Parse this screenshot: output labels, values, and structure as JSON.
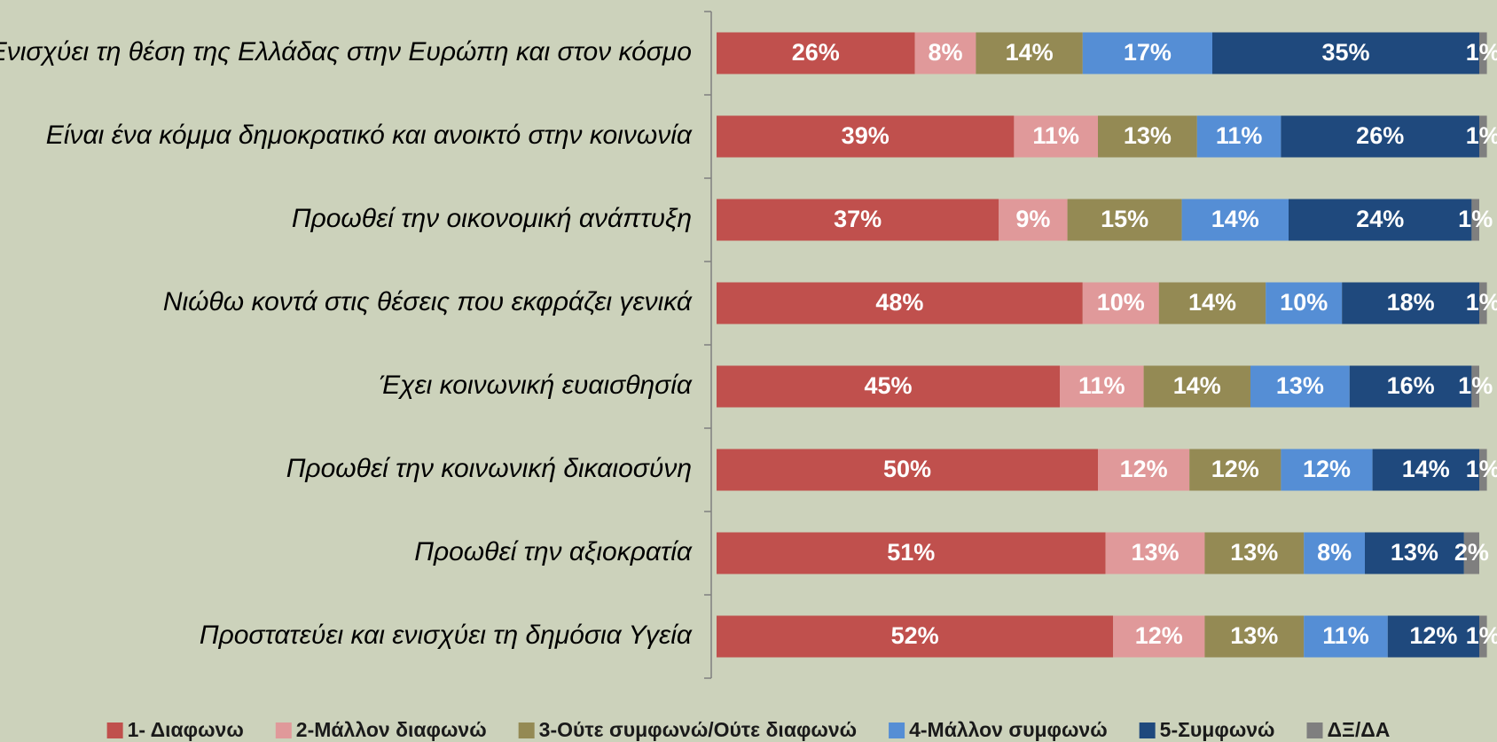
{
  "chart_data": {
    "type": "bar",
    "orientation": "horizontal",
    "stacked": true,
    "xlim": [
      0,
      100
    ],
    "categories": [
      "Ενισχύει τη θέση της Ελλάδας στην Ευρώπη και στον κόσμο",
      "Είναι ένα κόμμα δημοκρατικό και ανοικτό στην κοινωνία",
      "Προωθεί την οικονομική ανάπτυξη",
      "Νιώθω κοντά στις θέσεις που εκφράζει γενικά",
      "Έχει κοινωνική ευαισθησία",
      "Προωθεί την κοινωνική δικαιοσύνη",
      "Προωθεί την αξιοκρατία",
      "Προστατεύει και ενισχύει τη δημόσια Υγεία"
    ],
    "series": [
      {
        "name": "1- Διαφωνω",
        "color": "#c0504d",
        "values": [
          26,
          39,
          37,
          48,
          45,
          50,
          51,
          52
        ],
        "value_labels": [
          "26%",
          "39%",
          "37%",
          "48%",
          "45%",
          "50%",
          "51%",
          "52%"
        ]
      },
      {
        "name": "2-Μάλλον διαφωνώ",
        "color": "#e0999a",
        "values": [
          8,
          11,
          9,
          10,
          11,
          12,
          13,
          12
        ],
        "value_labels": [
          "8%",
          "11%",
          "9%",
          "10%",
          "11%",
          "12%",
          "13%",
          "12%"
        ]
      },
      {
        "name": "3-Ούτε συμφωνώ/Ούτε διαφωνώ",
        "color": "#948a54",
        "values": [
          14,
          13,
          15,
          14,
          14,
          12,
          13,
          13
        ],
        "value_labels": [
          "14%",
          "13%",
          "15%",
          "14%",
          "14%",
          "12%",
          "13%",
          "13%"
        ]
      },
      {
        "name": "4-Μάλλον συμφωνώ",
        "color": "#558ed5",
        "values": [
          17,
          11,
          14,
          10,
          13,
          12,
          8,
          11
        ],
        "value_labels": [
          "17%",
          "11%",
          "14%",
          "10%",
          "13%",
          "12%",
          "8%",
          "11%"
        ]
      },
      {
        "name": "5-Συμφωνώ",
        "color": "#1f497d",
        "values": [
          35,
          26,
          24,
          18,
          16,
          14,
          13,
          12
        ],
        "value_labels": [
          "35%",
          "26%",
          "24%",
          "18%",
          "16%",
          "14%",
          "13%",
          "12%"
        ]
      },
      {
        "name": "ΔΞ/ΔΑ",
        "color": "#7f7f7f",
        "values": [
          1,
          1,
          1,
          1,
          1,
          1,
          2,
          1
        ],
        "value_labels": [
          "1%",
          "1%",
          "1%",
          "1%",
          "1%",
          "1%",
          "2%",
          "1%"
        ]
      }
    ]
  }
}
